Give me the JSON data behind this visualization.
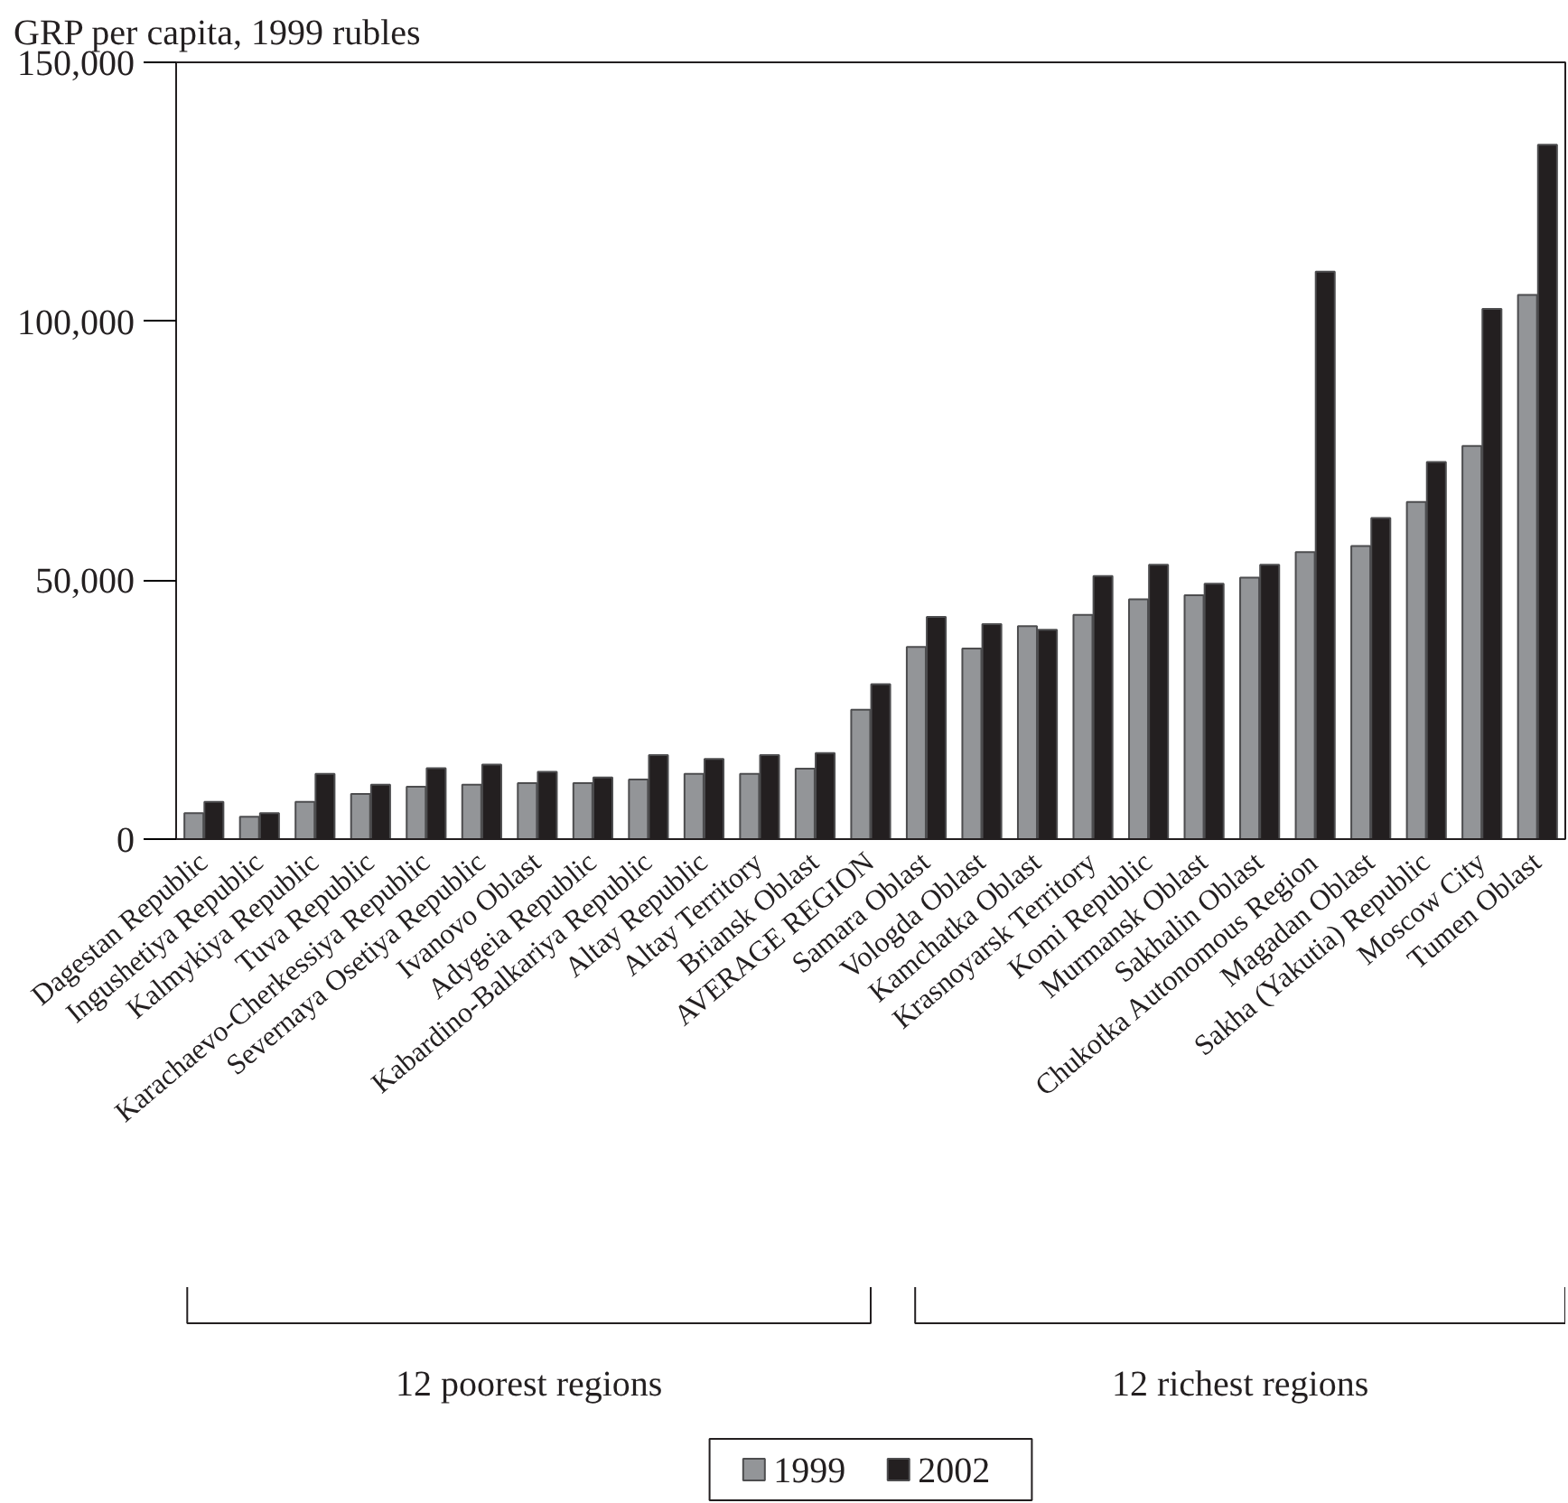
{
  "chart_data": {
    "type": "bar",
    "ylabel": "GRP per capita, 1999 rubles",
    "categories": [
      "Dagestan Republic",
      "Ingushetiya Republic",
      "Kalmykiya Republic",
      "Tuva Republic",
      "Karachaevo-Cherkessiya Republic",
      "Severnaya Osetiya Republic",
      "Ivanovo Oblast",
      "Adygeia Republic",
      "Kabardino-Balkariya Republic",
      "Altay Republic",
      "Altay Territory",
      "Briansk Oblast",
      "AVERAGE REGION",
      "Samara Oblast",
      "Vologda Oblast",
      "Kamchatka Oblast",
      "Krasnoyarsk Territory",
      "Komi Republic",
      "Murmansk Oblast",
      "Sakhalin Oblast",
      "Chukotka Autonomous Region",
      "Magadan Oblast",
      "Sakha (Yakutia) Republic",
      "Moscow City",
      "Tumen Oblast"
    ],
    "series": [
      {
        "name": "1999",
        "color": "#939598",
        "values": [
          5000,
          4300,
          7200,
          8700,
          10100,
          10500,
          10800,
          10800,
          11500,
          12600,
          12600,
          13600,
          25000,
          37100,
          36800,
          41100,
          43300,
          46300,
          47100,
          50500,
          55400,
          56600,
          65100,
          75900,
          105100
        ]
      },
      {
        "name": "2002",
        "color": "#231f20",
        "values": [
          7200,
          5000,
          12600,
          10500,
          13700,
          14400,
          13000,
          11900,
          16200,
          15500,
          16200,
          16600,
          29900,
          42900,
          41500,
          40400,
          50800,
          53000,
          49300,
          53000,
          109600,
          62000,
          72800,
          102400,
          134100
        ]
      }
    ],
    "ylim": [
      0,
      150000
    ],
    "yticks": [
      0,
      {
        "value": 50000,
        "label": "50,000"
      },
      {
        "value": 100000,
        "label": "100,000"
      },
      {
        "value": 150000,
        "label": "150,000"
      }
    ],
    "annotations": [
      "12 poorest regions",
      "12 richest regions"
    ],
    "legend": "bottom",
    "grid": false
  }
}
